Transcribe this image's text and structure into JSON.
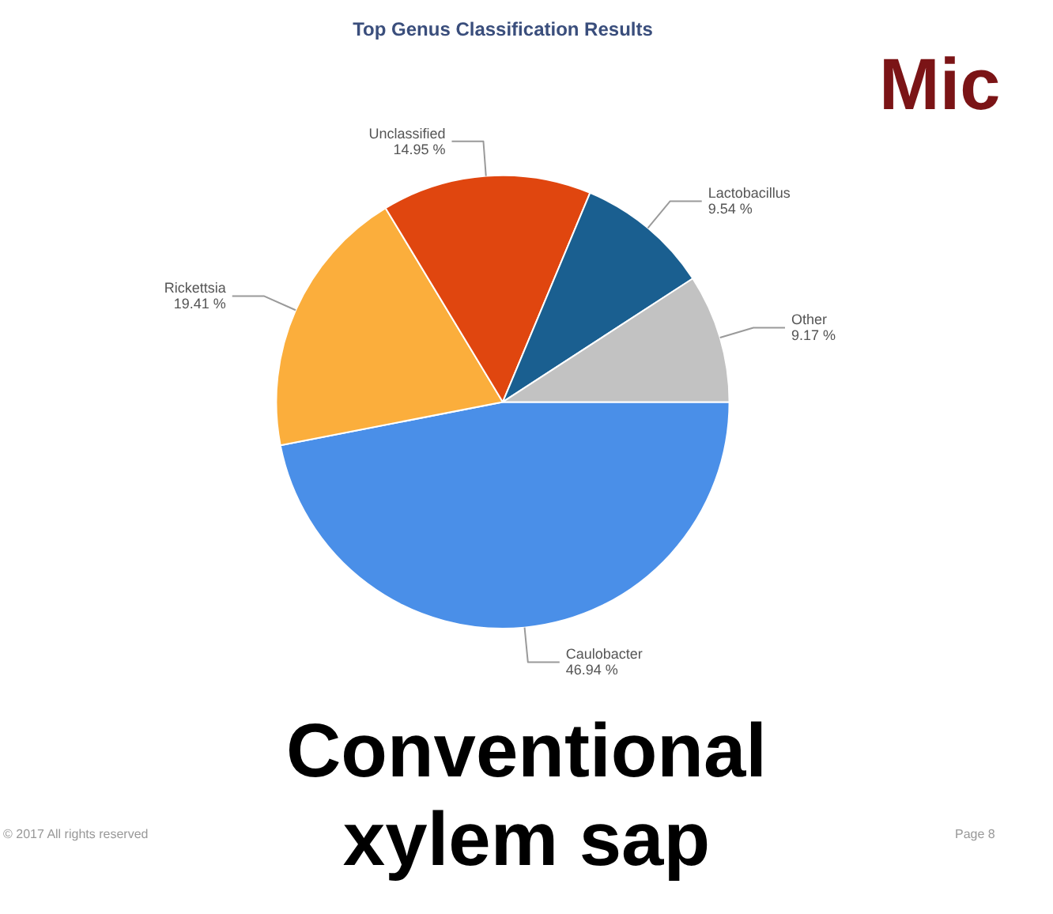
{
  "chart_data": {
    "type": "pie",
    "title": "Top Genus Classification Results",
    "categories": [
      "Caulobacter",
      "Rickettsia",
      "Unclassified",
      "Lactobacillus",
      "Other"
    ],
    "values": [
      46.94,
      19.41,
      14.95,
      9.54,
      9.17
    ],
    "value_labels": [
      "46.94 %",
      "19.41 %",
      "14.95 %",
      "9.54 %",
      "9.17 %"
    ],
    "colors": [
      "#4a8fe8",
      "#fbae3c",
      "#e0460f",
      "#1a5f90",
      "#c2c2c2"
    ],
    "annotations": [
      "Mic",
      "Conventional xylem sap",
      "© 2017 All rights reserved",
      "Page 8"
    ]
  }
}
